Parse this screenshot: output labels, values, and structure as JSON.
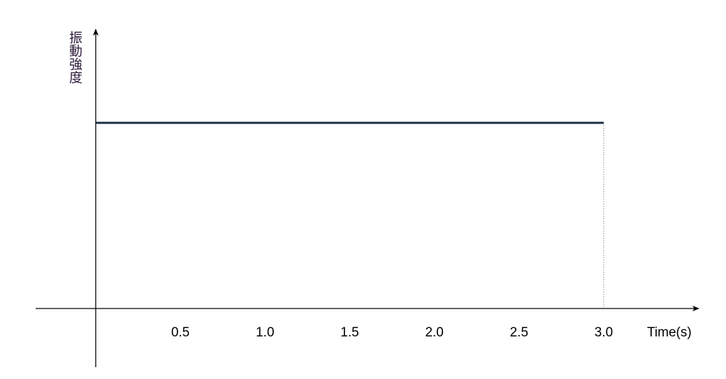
{
  "chart_data": {
    "type": "line",
    "title": "",
    "xlabel": "Time(s)",
    "ylabel": "振動強度",
    "x_ticks": [
      "0.5",
      "1.0",
      "1.5",
      "2.0",
      "2.5",
      "3.0"
    ],
    "x_tick_values": [
      0.5,
      1.0,
      1.5,
      2.0,
      2.5,
      3.0
    ],
    "xlim": [
      0,
      3.27
    ],
    "ylim": [
      0,
      1
    ],
    "series": [
      {
        "x": [
          0,
          3.0
        ],
        "y": [
          0.75,
          0.75
        ],
        "color": "#1b2f45"
      }
    ],
    "drop_line": {
      "x": 3.0,
      "style": "dotted",
      "color": "#8a8a8a"
    },
    "grid": false,
    "legend": "none",
    "axis_color": "#000000"
  }
}
